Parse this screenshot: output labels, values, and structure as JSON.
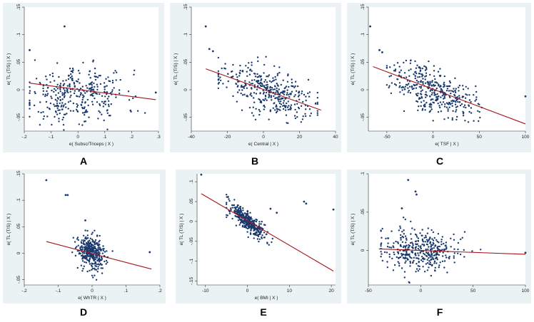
{
  "figure": {
    "labels": [
      "A",
      "B",
      "C",
      "D",
      "E",
      "F"
    ]
  },
  "chart_data": [
    {
      "panel": "A",
      "type": "scatter",
      "xlabel": "e( Subsc/Triceps | X )",
      "ylabel": "e( TL (T/S) | X )",
      "xlim": [
        -0.2,
        0.3
      ],
      "ylim": [
        -0.075,
        0.15
      ],
      "xticks": [
        -0.2,
        -0.1,
        0,
        0.1,
        0.2,
        0.3
      ],
      "xtick_labels": [
        "-.2",
        "-.1",
        "0",
        ".1",
        ".2",
        ".3"
      ],
      "yticks": [
        -0.05,
        0,
        0.05,
        0.1,
        0.15
      ],
      "ytick_labels": [
        "-.05",
        "0",
        ".05",
        ".1",
        ".15"
      ],
      "fit": {
        "x": [
          -0.18,
          0.29
        ],
        "y": [
          0.012,
          -0.018
        ]
      },
      "outliers": [
        [
          -0.05,
          0.115
        ],
        [
          -0.18,
          0.072
        ],
        [
          0.29,
          -0.005
        ]
      ],
      "cloud": {
        "n": 360,
        "seed": 11,
        "x_mean": 0.0,
        "x_sd": 0.09,
        "x_min": -0.18,
        "x_max": 0.25,
        "y_sd": 0.024,
        "slope": -0.064,
        "intercept": 0.0,
        "banded": true
      }
    },
    {
      "panel": "B",
      "type": "scatter",
      "xlabel": "e( Central | X )",
      "ylabel": "e( TL (T/S) | X )",
      "xlim": [
        -40,
        40
      ],
      "ylim": [
        -0.075,
        0.15
      ],
      "xticks": [
        -40,
        -20,
        0,
        20,
        40
      ],
      "xtick_labels": [
        "-40",
        "-20",
        "0",
        "20",
        "40"
      ],
      "yticks": [
        -0.05,
        0,
        0.05,
        0.1,
        0.15
      ],
      "ytick_labels": [
        "-.05",
        "0",
        ".05",
        ".1",
        ".15"
      ],
      "fit": {
        "x": [
          -32,
          32
        ],
        "y": [
          0.038,
          -0.037
        ]
      },
      "outliers": [
        [
          -32,
          0.115
        ],
        [
          -30,
          0.074
        ],
        [
          -28,
          0.07
        ]
      ],
      "cloud": {
        "n": 380,
        "seed": 23,
        "x_mean": 2,
        "x_sd": 13,
        "x_min": -25,
        "x_max": 30,
        "y_sd": 0.02,
        "slope": -0.00117,
        "intercept": 0.0,
        "banded": false
      }
    },
    {
      "panel": "C",
      "type": "scatter",
      "xlabel": "e( TSF | X )",
      "ylabel": "e( TL (T/S) | X )",
      "xlim": [
        -70,
        100
      ],
      "ylim": [
        -0.075,
        0.15
      ],
      "xticks": [
        -50,
        0,
        50,
        100
      ],
      "xtick_labels": [
        "-50",
        "0",
        "50",
        "100"
      ],
      "yticks": [
        -0.05,
        0,
        0.05,
        0.1,
        0.15
      ],
      "ytick_labels": [
        "-.05",
        "0",
        ".05",
        ".1",
        ".15"
      ],
      "fit": {
        "x": [
          -65,
          100
        ],
        "y": [
          0.042,
          -0.062
        ]
      },
      "outliers": [
        [
          -68,
          0.115
        ],
        [
          -58,
          0.072
        ],
        [
          -55,
          0.068
        ],
        [
          100,
          -0.012
        ]
      ],
      "cloud": {
        "n": 380,
        "seed": 37,
        "x_mean": 0,
        "x_sd": 22,
        "x_min": -50,
        "x_max": 60,
        "y_sd": 0.02,
        "slope": -0.00063,
        "intercept": 0.0,
        "banded": false
      }
    },
    {
      "panel": "D",
      "type": "scatter",
      "xlabel": "e( WhTR | X )",
      "ylabel": "e( TL (T/S) | X )",
      "xlim": [
        -0.2,
        0.2
      ],
      "ylim": [
        -0.06,
        0.15
      ],
      "xticks": [
        -0.2,
        -0.1,
        0,
        0.1,
        0.2
      ],
      "xtick_labels": [
        "-.2",
        "-.1",
        "0",
        ".1",
        ".2"
      ],
      "yticks": [
        -0.05,
        0,
        0.05,
        0.1,
        0.15
      ],
      "ytick_labels": [
        "-.05",
        "0",
        ".05",
        ".1",
        ".15"
      ],
      "fit": {
        "x": [
          -0.135,
          0.175
        ],
        "y": [
          0.022,
          -0.03
        ]
      },
      "outliers": [
        [
          -0.135,
          0.138
        ],
        [
          -0.078,
          0.11
        ],
        [
          -0.072,
          0.11
        ],
        [
          0.17,
          0.002
        ],
        [
          -0.02,
          0.062
        ]
      ],
      "cloud": {
        "n": 360,
        "seed": 53,
        "x_mean": 0.0,
        "x_sd": 0.022,
        "x_min": -0.06,
        "x_max": 0.065,
        "y_sd": 0.016,
        "slope": -0.17,
        "intercept": 0.0,
        "banded": false
      }
    },
    {
      "panel": "E",
      "type": "scatter",
      "xlabel": "e( BMI | X )",
      "ylabel": "e( TL (T/S) | X )",
      "xlim": [
        -12,
        21
      ],
      "ylim": [
        -0.16,
        0.12
      ],
      "xticks": [
        -10,
        0,
        10,
        20
      ],
      "xtick_labels": [
        "-10",
        "0",
        "10",
        "20"
      ],
      "yticks": [
        -0.15,
        -0.1,
        -0.05,
        0,
        0.05,
        0.1
      ],
      "ytick_labels": [
        "-.15",
        "-.1",
        "-.05",
        "0",
        ".05",
        ".1"
      ],
      "fit": {
        "x": [
          -11,
          20.5
        ],
        "y": [
          0.07,
          -0.125
        ]
      },
      "outliers": [
        [
          -11,
          0.118
        ],
        [
          13.5,
          0.05
        ],
        [
          20.5,
          0.03
        ],
        [
          14,
          0.045
        ],
        [
          5.5,
          0.032
        ],
        [
          7,
          0.022
        ]
      ],
      "cloud": {
        "n": 380,
        "seed": 71,
        "x_mean": 0,
        "x_sd": 2.2,
        "x_min": -5,
        "x_max": 6,
        "y_sd": 0.012,
        "slope": -0.0085,
        "intercept": 0.0,
        "banded": false
      }
    },
    {
      "panel": "F",
      "type": "scatter",
      "xlabel": "",
      "ylabel": "e( TL (T/S) | X )",
      "xlim": [
        -50,
        100
      ],
      "ylim": [
        -0.045,
        0.1
      ],
      "xticks": [
        -50,
        0,
        50,
        100
      ],
      "xtick_labels": [
        "-50",
        "0",
        "50",
        "100"
      ],
      "yticks": [
        0,
        0.05,
        0.1
      ],
      "ytick_labels": [
        "0",
        ".05",
        ".1"
      ],
      "fit": {
        "x": [
          -40,
          100
        ],
        "y": [
          0.002,
          -0.005
        ]
      },
      "outliers": [
        [
          -12,
          0.092
        ],
        [
          -5,
          0.077
        ],
        [
          -4,
          0.073
        ],
        [
          100,
          -0.003
        ],
        [
          -18,
          0.055
        ]
      ],
      "cloud": {
        "n": 380,
        "seed": 89,
        "x_mean": 0,
        "x_sd": 18,
        "x_min": -38,
        "x_max": 60,
        "y_sd": 0.014,
        "slope": -5e-05,
        "intercept": 0.0,
        "banded": false
      }
    }
  ]
}
